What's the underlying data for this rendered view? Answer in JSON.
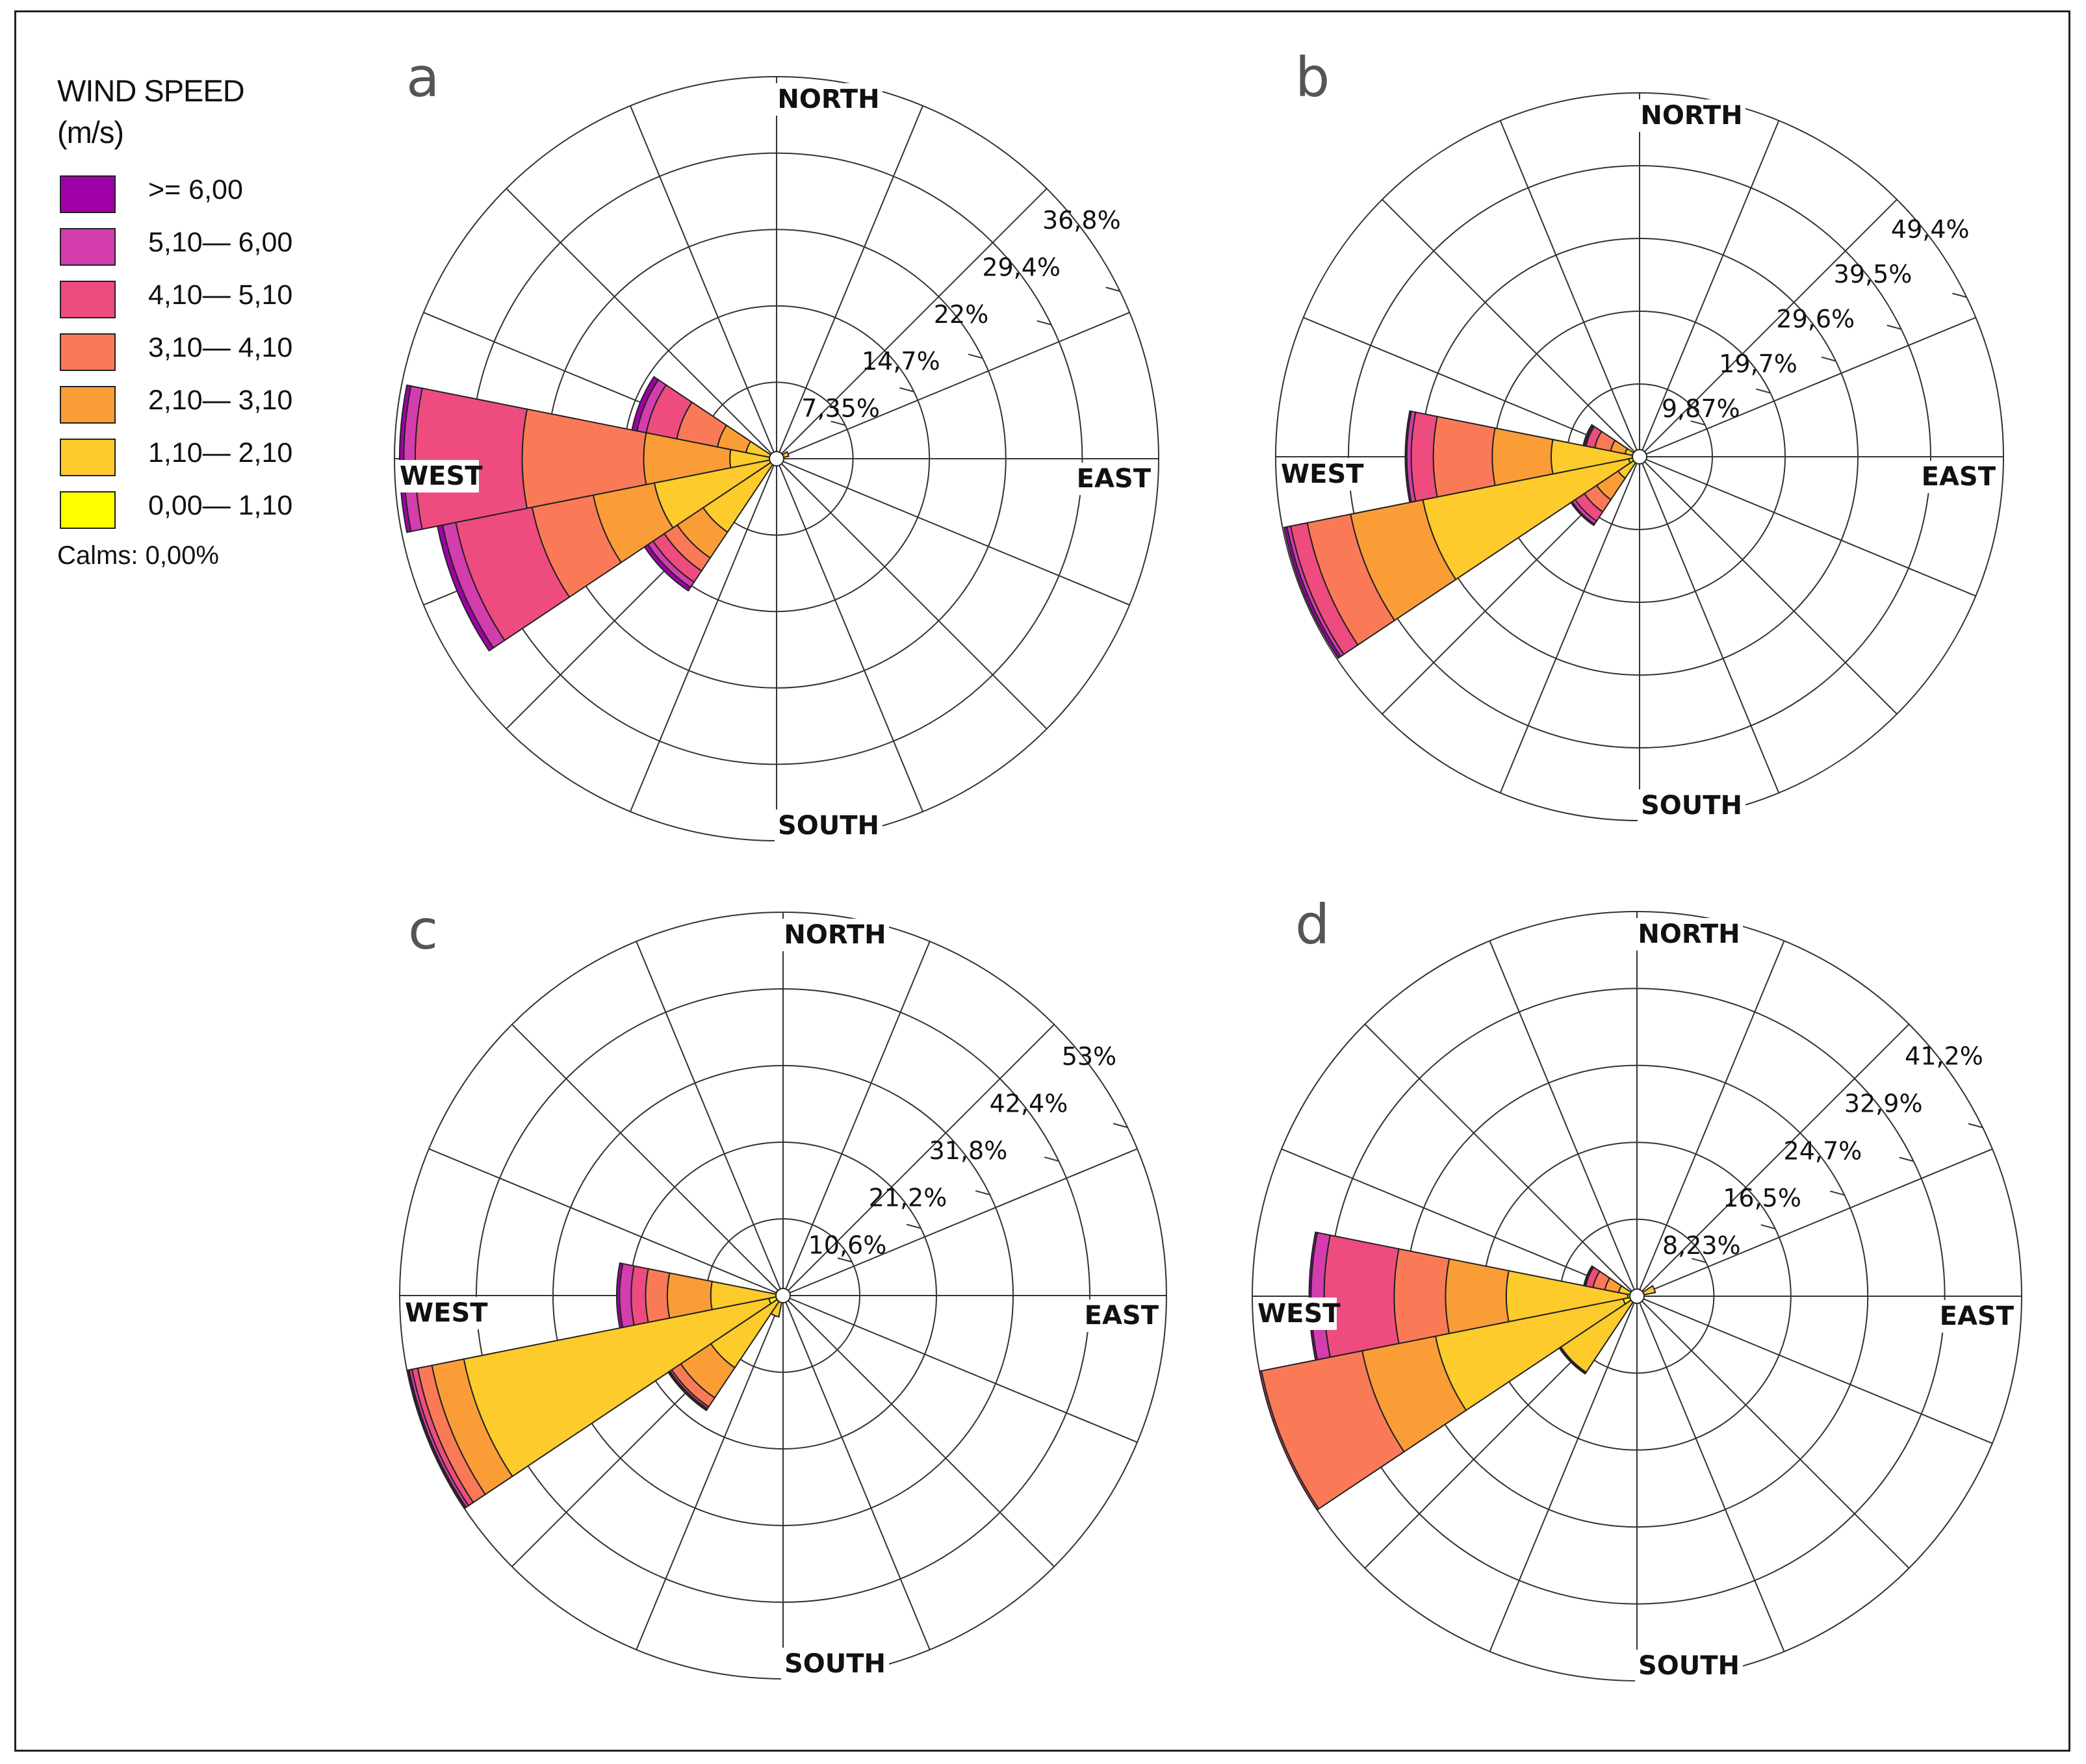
{
  "legend": {
    "title_line1": "WIND SPEED",
    "title_line2": "(m/s)",
    "items": [
      {
        "label": ">= 6,00",
        "color": "#A000A8"
      },
      {
        "label": "5,10— 6,00",
        "color": "#D43DAD"
      },
      {
        "label": "4,10— 5,10",
        "color": "#EE4C7E"
      },
      {
        "label": "3,10— 4,10",
        "color": "#FA7A58"
      },
      {
        "label": "2,10— 3,10",
        "color": "#FB9D37"
      },
      {
        "label": "1,10— 2,10",
        "color": "#FDCB2C"
      },
      {
        "label": "0,00— 1,10",
        "color": "#FFFF00"
      }
    ],
    "calms": "Calms: 0,00%"
  },
  "directions": {
    "north": "NORTH",
    "south": "SOUTH",
    "east": "EAST",
    "west": "WEST"
  },
  "chart_data": [
    {
      "type": "wind-rose",
      "panel_label": "a",
      "max_pct": 36.8,
      "ring_labels": [
        "7,35%",
        "14,7%",
        "22%",
        "29,4%",
        "36,8%"
      ],
      "sectors": [
        {
          "direction_deg": 45,
          "cum_pct": [
            0.2,
            0.5
          ]
        },
        {
          "direction_deg": 67.5,
          "cum_pct": [
            0.3,
            1.2
          ]
        },
        {
          "direction_deg": 292.5,
          "cum_pct": [
            0.5,
            3.0,
            5.8,
            9.8,
            12.8,
            13.7,
            14.2
          ]
        },
        {
          "direction_deg": 270,
          "cum_pct": [
            0.5,
            4.5,
            12.8,
            24.5,
            34.8,
            35.9,
            36.3
          ]
        },
        {
          "direction_deg": 247.5,
          "cum_pct": [
            0.5,
            12.0,
            18.0,
            24.0,
            31.5,
            32.8,
            33.3
          ]
        },
        {
          "direction_deg": 225,
          "cum_pct": [
            0.5,
            8.5,
            11.5,
            13.0,
            14.3,
            14.9,
            15.3
          ]
        }
      ]
    },
    {
      "type": "wind-rose",
      "panel_label": "b",
      "max_pct": 49.4,
      "ring_labels": [
        "9,87%",
        "19,7%",
        "29,6%",
        "39,5%",
        "49,4%"
      ],
      "sectors": [
        {
          "direction_deg": 292.5,
          "cum_pct": [
            0.5,
            2.0,
            4.0,
            6.2,
            7.4,
            7.6,
            7.8
          ]
        },
        {
          "direction_deg": 270,
          "cum_pct": [
            1.0,
            12.0,
            20.0,
            28.0,
            31.0,
            31.6,
            31.8
          ]
        },
        {
          "direction_deg": 247.5,
          "cum_pct": [
            1.5,
            30.0,
            40.0,
            46.0,
            48.3,
            48.8,
            49.2
          ]
        },
        {
          "direction_deg": 225,
          "cum_pct": [
            0.5,
            3.5,
            7.0,
            9.0,
            10.5,
            11.0,
            11.2
          ]
        }
      ]
    },
    {
      "type": "wind-rose",
      "panel_label": "c",
      "max_pct": 53,
      "ring_labels": [
        "10,6%",
        "21,2%",
        "31,8%",
        "42,4%",
        "53%"
      ],
      "sectors": [
        {
          "direction_deg": 270,
          "cum_pct": [
            1.0,
            10.0,
            16.0,
            19.0,
            21.0,
            22.6,
            23.0
          ]
        },
        {
          "direction_deg": 247.5,
          "cum_pct": [
            2.0,
            45.0,
            49.5,
            51.5,
            52.3,
            52.7,
            52.9
          ]
        },
        {
          "direction_deg": 225,
          "cum_pct": [
            1.0,
            12.0,
            17.0,
            18.5,
            18.8,
            19.0,
            19.1
          ]
        },
        {
          "direction_deg": 202.5,
          "cum_pct": [
            0.5,
            3.0
          ]
        },
        {
          "direction_deg": 292.5,
          "cum_pct": [
            0.3,
            1.0
          ]
        }
      ]
    },
    {
      "type": "wind-rose",
      "panel_label": "d",
      "max_pct": 41.2,
      "ring_labels": [
        "8,23%",
        "16,5%",
        "24,7%",
        "32,9%",
        "41,2%"
      ],
      "sectors": [
        {
          "direction_deg": 270,
          "cum_pct": [
            1.0,
            14.0,
            20.5,
            26.0,
            33.5,
            34.9,
            35.1
          ]
        },
        {
          "direction_deg": 247.5,
          "cum_pct": [
            1.5,
            22.0,
            30.0,
            41.0,
            41.2,
            41.2,
            41.2
          ]
        },
        {
          "direction_deg": 225,
          "cum_pct": [
            0.5,
            9.8,
            9.9,
            10.0,
            10.0,
            10.0,
            10.0
          ]
        },
        {
          "direction_deg": 292.5,
          "cum_pct": [
            0.3,
            2.0,
            3.5,
            4.8,
            5.6,
            5.7,
            5.8
          ]
        },
        {
          "direction_deg": 67.5,
          "cum_pct": [
            0.3,
            2.0
          ]
        }
      ]
    }
  ]
}
